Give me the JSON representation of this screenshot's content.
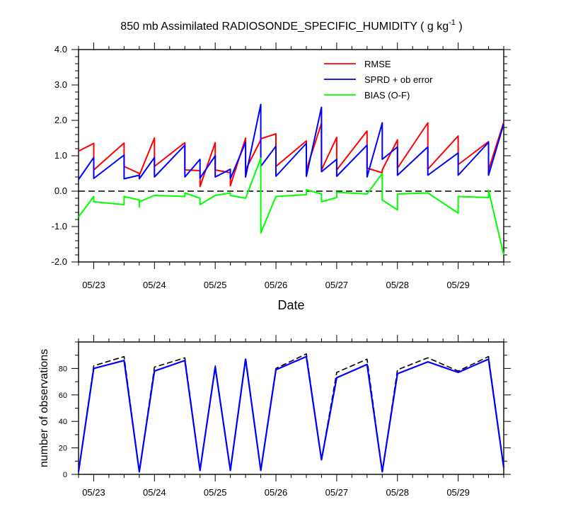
{
  "chart_data": [
    {
      "type": "line",
      "title": "850 mb Assimilated RADIOSONDE_SPECIFIC_HUMIDITY ( g kg",
      "title_superscript": "-1",
      "title_suffix": " )",
      "xlabel": "Date",
      "ylabel": "",
      "xlim": [
        0,
        7
      ],
      "ylim": [
        -2.0,
        4.0
      ],
      "ytick_labels": [
        "4.0",
        "3.0",
        "2.0",
        "1.0",
        "0.0",
        "-1.0",
        "-2.0"
      ],
      "ytick_values": [
        4.0,
        3.0,
        2.0,
        1.0,
        0.0,
        -1.0,
        -2.0
      ],
      "xtick_labels": [
        "05/23",
        "05/24",
        "05/25",
        "05/26",
        "05/27",
        "05/28",
        "05/29"
      ],
      "xtick_values": [
        0.25,
        1.25,
        2.25,
        3.25,
        4.25,
        5.25,
        6.25
      ],
      "zero_line": true,
      "legend": {
        "placement": "top-right",
        "entries": [
          "RMSE",
          "SPRD + ob error",
          "BIAS (O-F)"
        ]
      },
      "series": [
        {
          "name": "RMSE",
          "color": "#ff0000",
          "points": [
            [
              0.0,
              1.13
            ],
            [
              0.25,
              1.35
            ],
            [
              0.25,
              0.6
            ],
            [
              0.75,
              1.36
            ],
            [
              0.75,
              0.7
            ],
            [
              1.0,
              0.5
            ],
            [
              1.0,
              0.45
            ],
            [
              1.25,
              1.5
            ],
            [
              1.25,
              0.7
            ],
            [
              1.75,
              1.37
            ],
            [
              1.75,
              0.6
            ],
            [
              2.0,
              0.58
            ],
            [
              2.0,
              0.13
            ],
            [
              2.25,
              1.37
            ],
            [
              2.25,
              0.6
            ],
            [
              2.5,
              0.52
            ],
            [
              2.5,
              0.15
            ],
            [
              2.75,
              1.5
            ],
            [
              2.75,
              0.6
            ],
            [
              3.0,
              1.45
            ],
            [
              3.0,
              1.48
            ],
            [
              3.25,
              1.62
            ],
            [
              3.25,
              0.7
            ],
            [
              3.75,
              1.42
            ],
            [
              3.75,
              0.6
            ],
            [
              4.0,
              1.92
            ],
            [
              4.0,
              0.6
            ],
            [
              4.25,
              1.52
            ],
            [
              4.25,
              0.6
            ],
            [
              4.75,
              1.7
            ],
            [
              4.75,
              0.65
            ],
            [
              5.0,
              0.52
            ],
            [
              5.0,
              0.6
            ],
            [
              5.25,
              1.45
            ],
            [
              5.25,
              0.65
            ],
            [
              5.75,
              1.93
            ],
            [
              5.75,
              0.62
            ],
            [
              6.25,
              1.56
            ],
            [
              6.25,
              0.75
            ],
            [
              6.75,
              1.4
            ],
            [
              6.75,
              0.6
            ],
            [
              7.0,
              1.95
            ]
          ]
        },
        {
          "name": "SPRD + ob error",
          "color": "#0000ff",
          "points": [
            [
              0.0,
              0.33
            ],
            [
              0.25,
              0.95
            ],
            [
              0.25,
              0.36
            ],
            [
              0.75,
              1.02
            ],
            [
              0.75,
              0.35
            ],
            [
              1.0,
              0.45
            ],
            [
              1.0,
              0.35
            ],
            [
              1.25,
              0.95
            ],
            [
              1.25,
              0.4
            ],
            [
              1.75,
              1.3
            ],
            [
              1.75,
              0.4
            ],
            [
              2.0,
              0.9
            ],
            [
              2.0,
              0.37
            ],
            [
              2.25,
              1.0
            ],
            [
              2.25,
              0.4
            ],
            [
              2.5,
              0.62
            ],
            [
              2.5,
              0.35
            ],
            [
              2.75,
              1.38
            ],
            [
              2.75,
              0.4
            ],
            [
              3.0,
              2.45
            ],
            [
              3.0,
              0.7
            ],
            [
              3.25,
              1.27
            ],
            [
              3.25,
              0.42
            ],
            [
              3.75,
              1.35
            ],
            [
              3.75,
              0.42
            ],
            [
              4.0,
              2.37
            ],
            [
              4.0,
              0.55
            ],
            [
              4.25,
              0.9
            ],
            [
              4.25,
              0.42
            ],
            [
              4.75,
              1.3
            ],
            [
              4.75,
              0.4
            ],
            [
              5.0,
              1.93
            ],
            [
              5.0,
              0.9
            ],
            [
              5.25,
              1.25
            ],
            [
              5.25,
              0.45
            ],
            [
              5.75,
              1.25
            ],
            [
              5.75,
              0.45
            ],
            [
              6.25,
              1.08
            ],
            [
              6.25,
              0.45
            ],
            [
              6.75,
              1.38
            ],
            [
              6.75,
              0.45
            ],
            [
              7.0,
              1.9
            ]
          ]
        },
        {
          "name": "BIAS (O-F)",
          "color": "#00ff00",
          "points": [
            [
              0.0,
              -0.73
            ],
            [
              0.25,
              -0.15
            ],
            [
              0.25,
              -0.3
            ],
            [
              0.75,
              -0.38
            ],
            [
              0.75,
              -0.15
            ],
            [
              1.0,
              -0.25
            ],
            [
              1.0,
              -0.45
            ],
            [
              1.0,
              -0.3
            ],
            [
              1.25,
              -0.12
            ],
            [
              1.75,
              -0.15
            ],
            [
              1.75,
              -0.05
            ],
            [
              2.0,
              -0.2
            ],
            [
              2.0,
              -0.38
            ],
            [
              2.25,
              -0.12
            ],
            [
              2.5,
              -0.05
            ],
            [
              2.5,
              -0.12
            ],
            [
              2.75,
              -0.2
            ],
            [
              3.0,
              0.93
            ],
            [
              3.0,
              -1.18
            ],
            [
              3.25,
              -0.15
            ],
            [
              3.75,
              -0.1
            ],
            [
              3.75,
              0.04
            ],
            [
              4.0,
              -0.08
            ],
            [
              4.0,
              -0.3
            ],
            [
              4.25,
              -0.18
            ],
            [
              4.25,
              -0.03
            ],
            [
              4.75,
              -0.08
            ],
            [
              5.0,
              0.5
            ],
            [
              5.0,
              -0.25
            ],
            [
              5.25,
              -0.53
            ],
            [
              5.25,
              -0.08
            ],
            [
              5.75,
              -0.05
            ],
            [
              6.25,
              -0.62
            ],
            [
              6.25,
              -0.15
            ],
            [
              6.75,
              -0.18
            ],
            [
              6.75,
              0.03
            ],
            [
              7.0,
              -1.8
            ]
          ]
        }
      ]
    },
    {
      "type": "line",
      "title": "",
      "xlabel": "",
      "ylabel": "number of observations",
      "xlim": [
        0,
        7
      ],
      "ylim": [
        0,
        100
      ],
      "ytick_labels": [
        "0",
        "20",
        "40",
        "60",
        "80"
      ],
      "ytick_values": [
        0,
        20,
        40,
        60,
        80
      ],
      "xtick_labels": [
        "05/23",
        "05/24",
        "05/25",
        "05/26",
        "05/27",
        "05/28",
        "05/29"
      ],
      "xtick_values": [
        0.25,
        1.25,
        2.25,
        3.25,
        4.25,
        5.25,
        6.25
      ],
      "series": [
        {
          "name": "dashed",
          "color": "#000000",
          "style": "dashed",
          "points": [
            [
              0.0,
              2
            ],
            [
              0.25,
              82
            ],
            [
              0.75,
              89
            ],
            [
              1.0,
              2
            ],
            [
              1.25,
              81
            ],
            [
              1.75,
              88
            ],
            [
              2.0,
              3
            ],
            [
              2.25,
              82
            ],
            [
              2.5,
              3
            ],
            [
              2.75,
              88
            ],
            [
              3.0,
              3
            ],
            [
              3.25,
              80
            ],
            [
              3.75,
              91
            ],
            [
              4.0,
              11
            ],
            [
              4.25,
              77
            ],
            [
              4.75,
              87
            ],
            [
              5.0,
              2
            ],
            [
              5.25,
              79
            ],
            [
              5.75,
              88
            ],
            [
              6.25,
              78
            ],
            [
              6.75,
              89
            ],
            [
              7.0,
              5
            ]
          ]
        },
        {
          "name": "solid",
          "color": "#0000ff",
          "style": "solid",
          "points": [
            [
              0.0,
              2
            ],
            [
              0.25,
              80
            ],
            [
              0.75,
              86
            ],
            [
              1.0,
              2
            ],
            [
              1.25,
              78
            ],
            [
              1.75,
              86
            ],
            [
              2.0,
              3
            ],
            [
              2.25,
              81
            ],
            [
              2.5,
              3
            ],
            [
              2.75,
              87
            ],
            [
              3.0,
              3
            ],
            [
              3.25,
              79
            ],
            [
              3.75,
              89
            ],
            [
              4.0,
              11
            ],
            [
              4.25,
              73
            ],
            [
              4.75,
              83
            ],
            [
              5.0,
              2
            ],
            [
              5.25,
              76
            ],
            [
              5.75,
              85
            ],
            [
              6.25,
              77
            ],
            [
              6.75,
              87
            ],
            [
              7.0,
              5
            ]
          ]
        }
      ]
    }
  ]
}
